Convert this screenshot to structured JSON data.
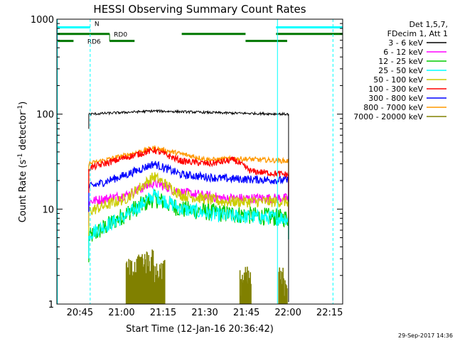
{
  "chart_data": {
    "type": "line",
    "title": "HESSI Observing Summary Count Rates",
    "xlabel": "Start Time (12-Jan-16 20:36:42)",
    "ylabel_main": "Count Rate (s",
    "ylabel_sup1": "-1",
    "ylabel_mid": " detector",
    "ylabel_sup2": "-1",
    "ylabel_end": ")",
    "yscale": "log",
    "ylim": [
      1,
      1000
    ],
    "xlim_minutes": [
      0,
      103
    ],
    "y_ticks": [
      {
        "value": 1,
        "label": "1"
      },
      {
        "value": 10,
        "label": "10"
      },
      {
        "value": 100,
        "label": "100"
      },
      {
        "value": 1000,
        "label": "1000"
      }
    ],
    "x_ticks": [
      {
        "minute": 8.3,
        "label": "20:45"
      },
      {
        "minute": 23.3,
        "label": "21:00"
      },
      {
        "minute": 38.3,
        "label": "21:15"
      },
      {
        "minute": 53.3,
        "label": "21:30"
      },
      {
        "minute": 68.3,
        "label": "21:45"
      },
      {
        "minute": 83.3,
        "label": "22:00"
      },
      {
        "minute": 98.3,
        "label": "22:15"
      }
    ],
    "legend_header": [
      "Det 1,5,7,",
      "FDecim 1, Att 1"
    ],
    "series": [
      {
        "name": "3 - 6 keV",
        "color": "#000000"
      },
      {
        "name": "6 - 12 keV",
        "color": "#ff00ff"
      },
      {
        "name": "12 - 25 keV",
        "color": "#00cc00"
      },
      {
        "name": "25 - 50 keV",
        "color": "#00ffff"
      },
      {
        "name": "50 - 100 keV",
        "color": "#cccc00"
      },
      {
        "name": "100 - 300 keV",
        "color": "#ff0000"
      },
      {
        "name": "300 - 800 keV",
        "color": "#0000ff"
      },
      {
        "name": "800 - 7000 keV",
        "color": "#ff9900"
      },
      {
        "name": "7000 - 20000 keV",
        "color": "#808000"
      }
    ],
    "curve_profiles": {
      "time_range_minutes": [
        11.5,
        83.5
      ],
      "3 - 6 keV": [
        {
          "t": 11.5,
          "v": 100
        },
        {
          "t": 35,
          "v": 108
        },
        {
          "t": 60,
          "v": 103
        },
        {
          "t": 83.5,
          "v": 100
        }
      ],
      "6 - 12 keV": [
        {
          "t": 11.5,
          "v": 12
        },
        {
          "t": 25,
          "v": 14
        },
        {
          "t": 35,
          "v": 19
        },
        {
          "t": 45,
          "v": 15
        },
        {
          "t": 60,
          "v": 13
        },
        {
          "t": 83.5,
          "v": 13
        }
      ],
      "12 - 25 keV": [
        {
          "t": 11.5,
          "v": 5
        },
        {
          "t": 25,
          "v": 9
        },
        {
          "t": 35,
          "v": 13
        },
        {
          "t": 45,
          "v": 10
        },
        {
          "t": 60,
          "v": 9
        },
        {
          "t": 83.5,
          "v": 8
        }
      ],
      "25 - 50 keV": [
        {
          "t": 11.5,
          "v": 5.5
        },
        {
          "t": 25,
          "v": 8.5
        },
        {
          "t": 35,
          "v": 14
        },
        {
          "t": 45,
          "v": 10
        },
        {
          "t": 60,
          "v": 8.5
        },
        {
          "t": 83.5,
          "v": 8
        }
      ],
      "50 - 100 keV": [
        {
          "t": 11.5,
          "v": 9.5
        },
        {
          "t": 25,
          "v": 13
        },
        {
          "t": 35,
          "v": 22
        },
        {
          "t": 45,
          "v": 14
        },
        {
          "t": 60,
          "v": 12
        },
        {
          "t": 83.5,
          "v": 12
        }
      ],
      "100 - 300 keV": [
        {
          "t": 11.5,
          "v": 27
        },
        {
          "t": 25,
          "v": 35
        },
        {
          "t": 35,
          "v": 42
        },
        {
          "t": 45,
          "v": 32
        },
        {
          "t": 55,
          "v": 30
        },
        {
          "t": 64,
          "v": 33
        },
        {
          "t": 70,
          "v": 25
        },
        {
          "t": 83.5,
          "v": 23
        }
      ],
      "300 - 800 keV": [
        {
          "t": 11.5,
          "v": 17
        },
        {
          "t": 25,
          "v": 23
        },
        {
          "t": 35,
          "v": 30
        },
        {
          "t": 45,
          "v": 23
        },
        {
          "t": 60,
          "v": 21
        },
        {
          "t": 83.5,
          "v": 20
        }
      ],
      "800 - 7000 keV": [
        {
          "t": 11.5,
          "v": 30
        },
        {
          "t": 25,
          "v": 37
        },
        {
          "t": 35,
          "v": 44
        },
        {
          "t": 45,
          "v": 38
        },
        {
          "t": 55,
          "v": 33
        },
        {
          "t": 65,
          "v": 34
        },
        {
          "t": 83.5,
          "v": 32
        }
      ]
    },
    "flag_segments": [
      {
        "label": "N",
        "color": "#00ffff",
        "y_value": 820,
        "ranges": [
          [
            0,
            12
          ],
          [
            79,
            103
          ]
        ]
      },
      {
        "label": "RD0",
        "color": "#007700",
        "y_value": 700,
        "ranges": [
          [
            0,
            12
          ],
          [
            12,
            19
          ],
          [
            45,
            68
          ],
          [
            79,
            103
          ]
        ]
      },
      {
        "label": "RD6",
        "color": "#007700",
        "y_value": 590,
        "ranges": [
          [
            0,
            6
          ],
          [
            19,
            28
          ],
          [
            68,
            83
          ]
        ]
      }
    ],
    "vertical_markers": [
      {
        "minute": 0.2,
        "color": "#00ffff",
        "style": "solid"
      },
      {
        "minute": 12,
        "color": "#00ffff",
        "style": "dashed"
      },
      {
        "minute": 79.5,
        "color": "#00ffff",
        "style": "solid"
      },
      {
        "minute": 99.5,
        "color": "#00ffff",
        "style": "dashed"
      }
    ],
    "timestamp": "29-Sep-2017 14:36"
  }
}
